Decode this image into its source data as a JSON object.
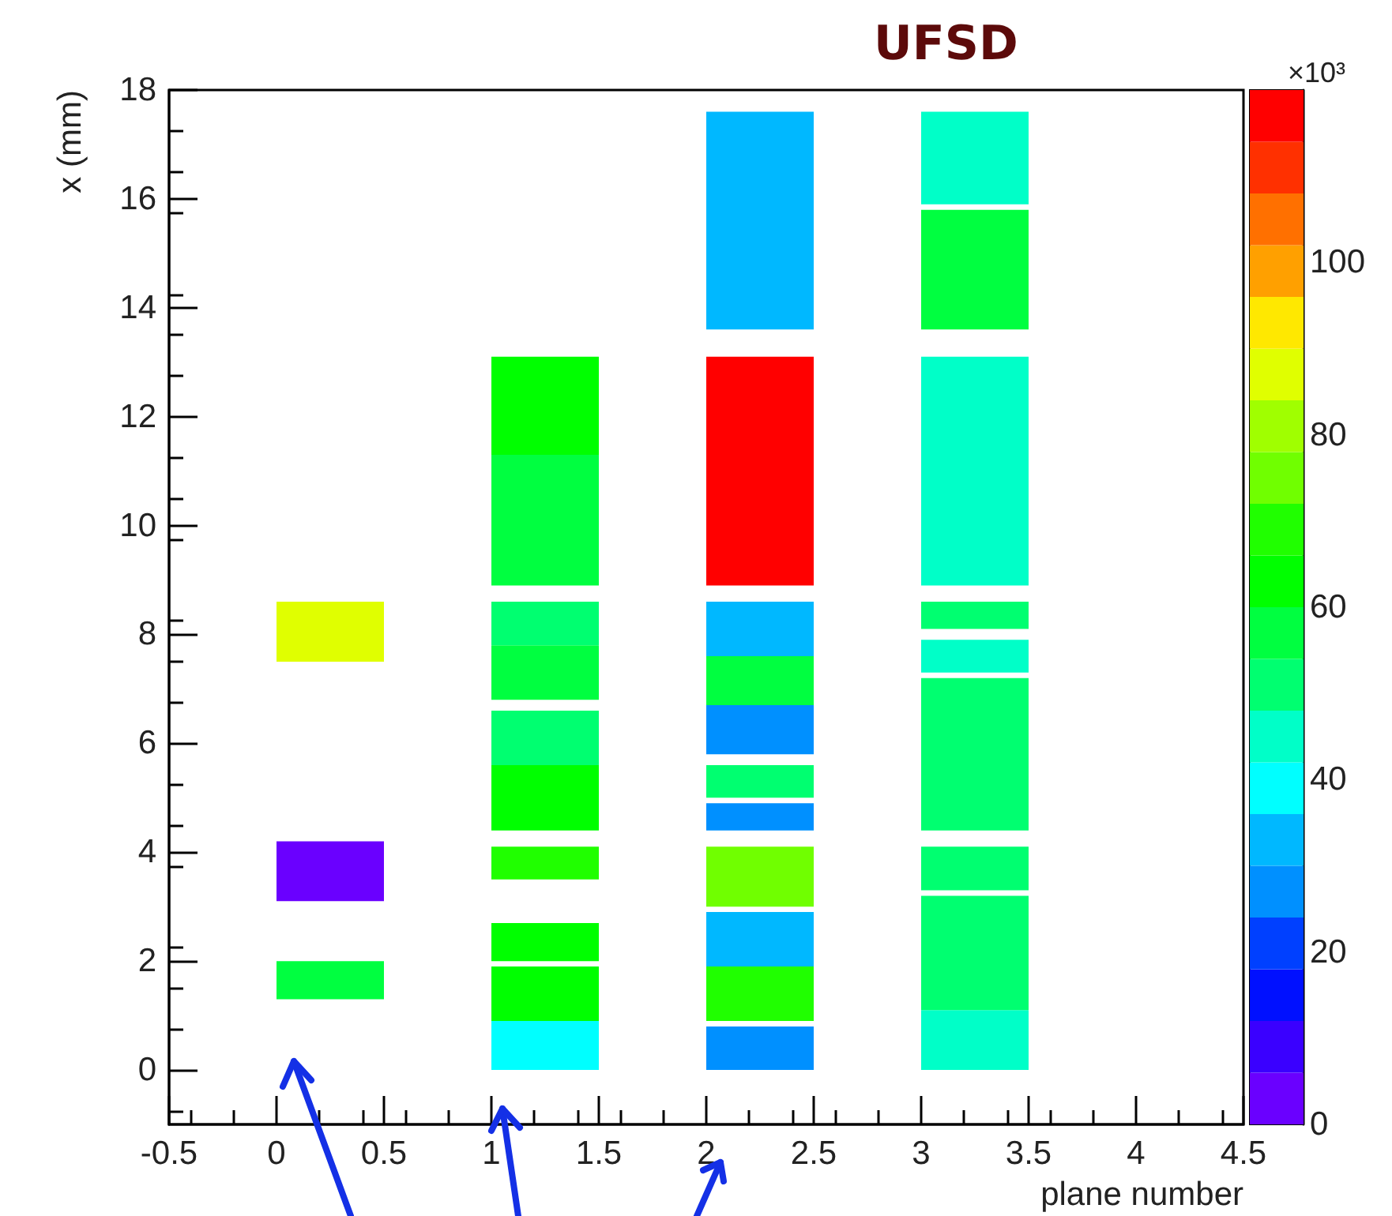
{
  "chart_data": {
    "type": "bar",
    "title": "UFSD",
    "xlabel": "plane number",
    "ylabel": "x (mm)",
    "clabel": "×10³",
    "x": [
      0.25,
      1.25,
      2.25,
      3.25
    ],
    "series": [
      {
        "base": [
          1.3,
          0,
          0,
          0
        ],
        "values": [
          0.7,
          0.9,
          0.8,
          1.1
        ],
        "colors": [
          "#00ff40",
          "#00ffff",
          "#0090ff",
          "#00ffc8"
        ]
      },
      {
        "base": [
          3.1,
          0.9,
          0.9,
          1.1
        ],
        "values": [
          1.1,
          1.0,
          1.0,
          2.1
        ],
        "colors": [
          "#6a00ff",
          "#00ff00",
          "#20ff00",
          "#00ff70"
        ]
      },
      {
        "base": [
          7.5,
          2.0,
          1.9,
          3.3
        ],
        "values": [
          1.1,
          0.7,
          1.0,
          0.8
        ],
        "colors": [
          "#e0ff00",
          "#00ff00",
          "#00b8ff",
          "#00ff70"
        ]
      },
      {
        "base": [
          null,
          3.5,
          3.0,
          4.4
        ],
        "values": [
          null,
          0.6,
          1.1,
          2.8
        ],
        "colors": [
          null,
          "#20ff00",
          "#70ff00",
          "#00ff70"
        ]
      },
      {
        "base": [
          null,
          4.4,
          4.4,
          7.3
        ],
        "values": [
          null,
          1.2,
          0.5,
          0.6
        ],
        "colors": [
          null,
          "#00ff00",
          "#0090ff",
          "#00ffc8"
        ]
      },
      {
        "base": [
          null,
          5.6,
          5.0,
          8.1
        ],
        "values": [
          null,
          1.0,
          0.6,
          0.5
        ],
        "color": "#00ff70"
      },
      {
        "base": [
          null,
          6.8,
          5.8,
          8.9
        ],
        "values": [
          null,
          1.0,
          0.9,
          4.2
        ],
        "colors": [
          null,
          "#00ff40",
          "#0090ff",
          "#00ffc8"
        ]
      },
      {
        "base": [
          null,
          7.8,
          6.7,
          13.6
        ],
        "values": [
          null,
          0.8,
          0.9,
          2.2
        ],
        "colors": [
          null,
          "#00ff70",
          "#00ff40",
          "#00ff40"
        ]
      },
      {
        "base": [
          null,
          8.9,
          7.6,
          15.9
        ],
        "values": [
          null,
          2.4,
          1.0,
          1.7
        ],
        "colors": [
          null,
          "#00ff40",
          "#00b8ff",
          "#00ffc8"
        ]
      },
      {
        "base": [
          null,
          11.3,
          8.9,
          null
        ],
        "values": [
          null,
          1.8,
          4.2,
          null
        ],
        "colors": [
          null,
          "#00ff00",
          "#ff0000",
          null
        ]
      },
      {
        "base": [
          null,
          null,
          13.6,
          null
        ],
        "values": [
          null,
          null,
          4.0,
          null
        ],
        "color": "#00b8ff"
      }
    ],
    "xlim": [
      -0.5,
      4.5
    ],
    "xticks": [
      -0.5,
      0,
      0.5,
      1,
      1.5,
      2,
      2.5,
      3,
      3.5,
      4,
      4.5
    ],
    "ylim": [
      -1,
      18
    ],
    "yticks": [
      0,
      2,
      4,
      6,
      8,
      10,
      12,
      14,
      16,
      18
    ],
    "clim": [
      0,
      120
    ],
    "cticks": [
      0,
      20,
      40,
      60,
      80,
      100
    ]
  }
}
